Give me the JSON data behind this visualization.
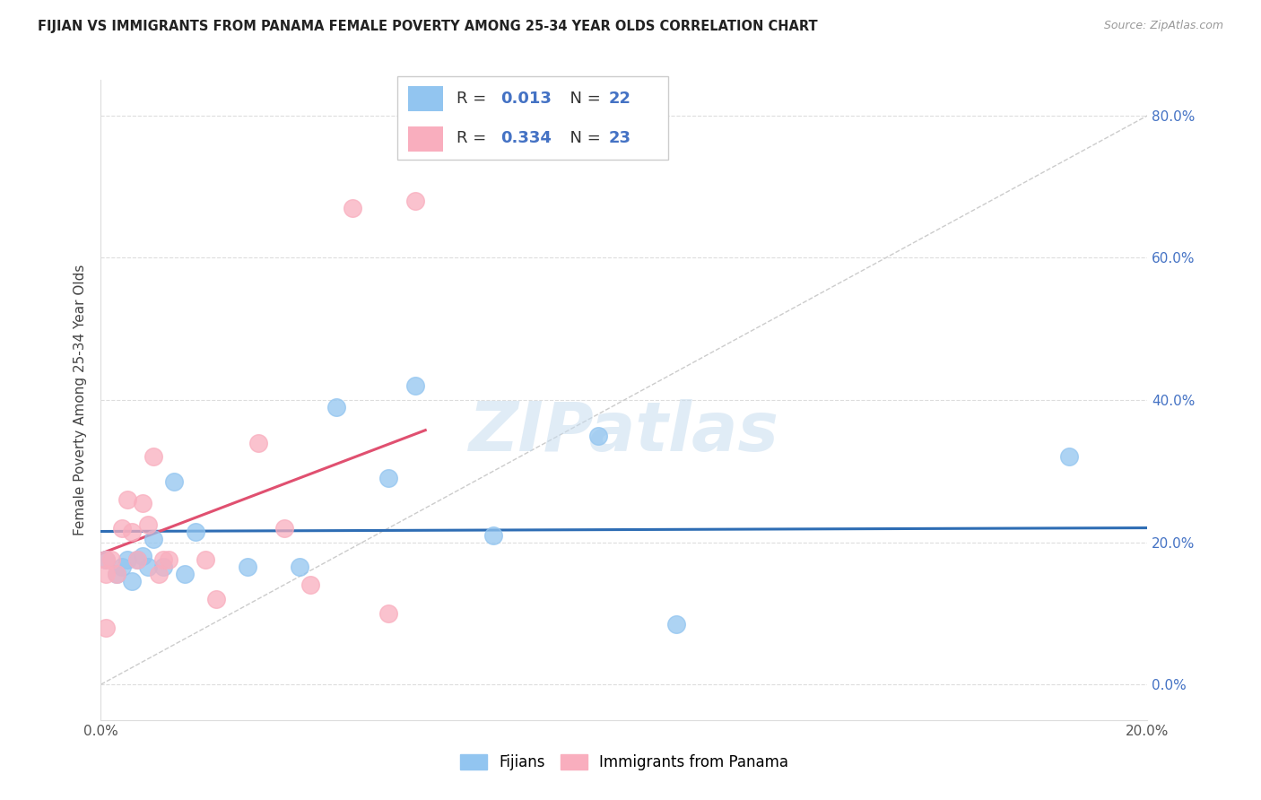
{
  "title": "FIJIAN VS IMMIGRANTS FROM PANAMA FEMALE POVERTY AMONG 25-34 YEAR OLDS CORRELATION CHART",
  "source": "Source: ZipAtlas.com",
  "ylabel": "Female Poverty Among 25-34 Year Olds",
  "xlim": [
    0.0,
    0.2
  ],
  "ylim": [
    -0.05,
    0.85
  ],
  "fijian_color": "#92C5F0",
  "panama_color": "#F9AEBE",
  "fijian_line_color": "#2E6DB4",
  "panama_line_color": "#E05070",
  "diag_line_color": "#CCCCCC",
  "grid_color": "#DDDDDD",
  "fijian_R": 0.013,
  "fijian_N": 22,
  "panama_R": 0.334,
  "panama_N": 23,
  "legend_R_color": "#4472C4",
  "watermark": "ZIPatlas",
  "fijian_x": [
    0.001,
    0.003,
    0.004,
    0.005,
    0.006,
    0.007,
    0.008,
    0.009,
    0.01,
    0.012,
    0.014,
    0.016,
    0.018,
    0.028,
    0.038,
    0.045,
    0.055,
    0.06,
    0.075,
    0.095,
    0.11,
    0.185
  ],
  "fijian_y": [
    0.175,
    0.155,
    0.165,
    0.175,
    0.145,
    0.175,
    0.18,
    0.165,
    0.205,
    0.165,
    0.285,
    0.155,
    0.215,
    0.165,
    0.165,
    0.39,
    0.29,
    0.42,
    0.21,
    0.35,
    0.085,
    0.32
  ],
  "panama_x": [
    0.001,
    0.001,
    0.001,
    0.002,
    0.003,
    0.004,
    0.005,
    0.006,
    0.007,
    0.008,
    0.009,
    0.01,
    0.011,
    0.012,
    0.013,
    0.02,
    0.022,
    0.03,
    0.035,
    0.04,
    0.048,
    0.055,
    0.06
  ],
  "panama_y": [
    0.175,
    0.155,
    0.08,
    0.175,
    0.155,
    0.22,
    0.26,
    0.215,
    0.175,
    0.255,
    0.225,
    0.32,
    0.155,
    0.175,
    0.175,
    0.175,
    0.12,
    0.34,
    0.22,
    0.14,
    0.67,
    0.1,
    0.68
  ],
  "x_ticks": [
    0.0,
    0.04,
    0.08,
    0.12,
    0.16,
    0.2
  ],
  "x_tick_labels": [
    "0.0%",
    "",
    "",
    "",
    "",
    "20.0%"
  ],
  "y_ticks": [
    0.0,
    0.2,
    0.4,
    0.6,
    0.8
  ],
  "y_tick_labels": [
    "0.0%",
    "20.0%",
    "40.0%",
    "60.0%",
    "80.0%"
  ]
}
